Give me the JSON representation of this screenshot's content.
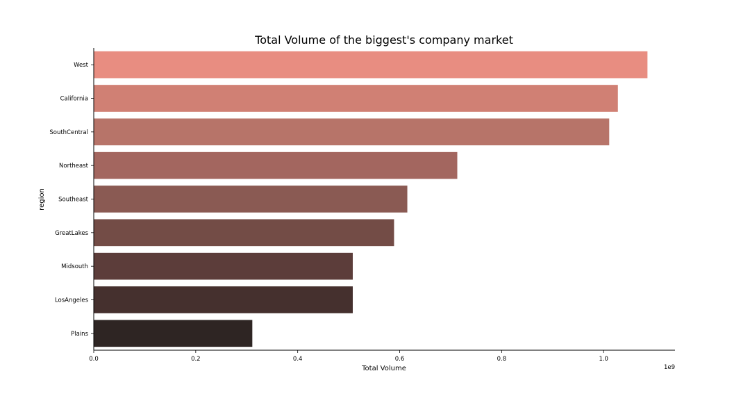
{
  "chart_data": {
    "type": "bar",
    "orientation": "horizontal",
    "title": "Total Volume of the biggest's company market",
    "xlabel": "Total Volume",
    "ylabel": "region",
    "x_scale_label": "1e9",
    "xlim": [
      0,
      1.14
    ],
    "x_ticks": [
      0.0,
      0.2,
      0.4,
      0.6,
      0.8,
      1.0
    ],
    "x_tick_labels": [
      "0.0",
      "0.2",
      "0.4",
      "0.6",
      "0.8",
      "1.0"
    ],
    "categories": [
      "West",
      "California",
      "SouthCentral",
      "Northeast",
      "Southeast",
      "GreatLakes",
      "Midsouth",
      "LosAngeles",
      "Plains"
    ],
    "values": [
      1.086,
      1.028,
      1.011,
      0.713,
      0.615,
      0.589,
      0.508,
      0.508,
      0.311
    ],
    "units": "Total Volume (×1e9)",
    "colors": [
      "#e88d81",
      "#d08074",
      "#b77469",
      "#a3665f",
      "#8a5a53",
      "#734c46",
      "#5c3d3a",
      "#45302e",
      "#2e2523"
    ],
    "grid": false,
    "legend": "none"
  }
}
